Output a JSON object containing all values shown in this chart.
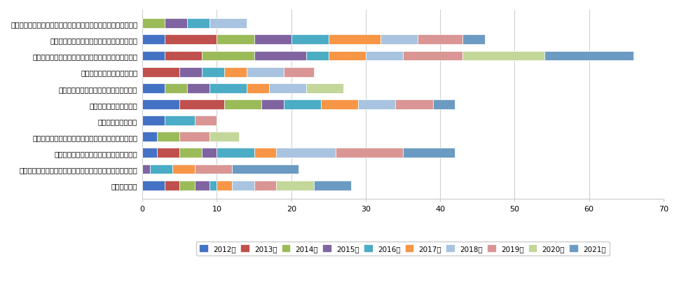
{
  "categories": [
    "行列式的运算",
    "矩阵的性质及运算（简单运算、可逆矩阵、伴随矩阵）及性质",
    "矩阵的秩及初等变换、初等矩阵、等价矩阵",
    "向量组的秩和向量组的线性相关、无关的性质及判别法",
    "线性组合与线性表示",
    "非齐次线性方程组的求法",
    "齐次线性方程组的基础解系和通解的求法",
    "矩阵特征值和特征向量的性质",
    "相似变换、相似矩阵的概念及性质、矩阵的相似对角化",
    "二次型与矩阵的关系、二次型的概念及标准化",
    "二次型标准化、惯性定理、合同变换与合同矩阵的概念、正交矩阵"
  ],
  "years": [
    "2012年",
    "2013年",
    "2014年",
    "2015年",
    "2016年",
    "2017年",
    "2018年",
    "2019年",
    "2020年",
    "2021年"
  ],
  "year_colors": [
    "#4472C4",
    "#C0504D",
    "#9BBB59",
    "#8064A2",
    "#4BACC6",
    "#F79646",
    "#A8C4E0",
    "#D99694",
    "#C4D79B",
    "#6B9BC3"
  ],
  "data": [
    [
      3,
      2,
      2,
      2,
      1,
      2,
      3,
      3,
      5,
      5
    ],
    [
      0,
      0,
      0,
      1,
      3,
      3,
      0,
      5,
      0,
      9
    ],
    [
      2,
      3,
      3,
      2,
      5,
      3,
      8,
      9,
      0,
      7
    ],
    [
      2,
      0,
      3,
      0,
      0,
      0,
      0,
      4,
      4,
      0
    ],
    [
      3,
      0,
      0,
      0,
      4,
      0,
      0,
      3,
      0,
      0
    ],
    [
      5,
      6,
      5,
      3,
      5,
      5,
      5,
      5,
      0,
      3
    ],
    [
      3,
      0,
      3,
      3,
      5,
      3,
      5,
      0,
      5,
      0
    ],
    [
      0,
      5,
      0,
      3,
      3,
      3,
      5,
      4,
      0,
      0
    ],
    [
      3,
      5,
      7,
      7,
      3,
      5,
      5,
      8,
      11,
      12
    ],
    [
      3,
      7,
      5,
      5,
      5,
      7,
      5,
      6,
      0,
      3
    ],
    [
      0,
      0,
      3,
      3,
      3,
      0,
      5,
      0,
      0,
      0
    ]
  ],
  "xlim": [
    0,
    70
  ],
  "xticks": [
    0,
    10,
    20,
    30,
    40,
    50,
    60,
    70
  ],
  "figsize": [
    9.69,
    4.31
  ],
  "dpi": 100,
  "bar_height": 0.6,
  "background_color": "#FFFFFF",
  "grid_color": "#CCCCCC"
}
